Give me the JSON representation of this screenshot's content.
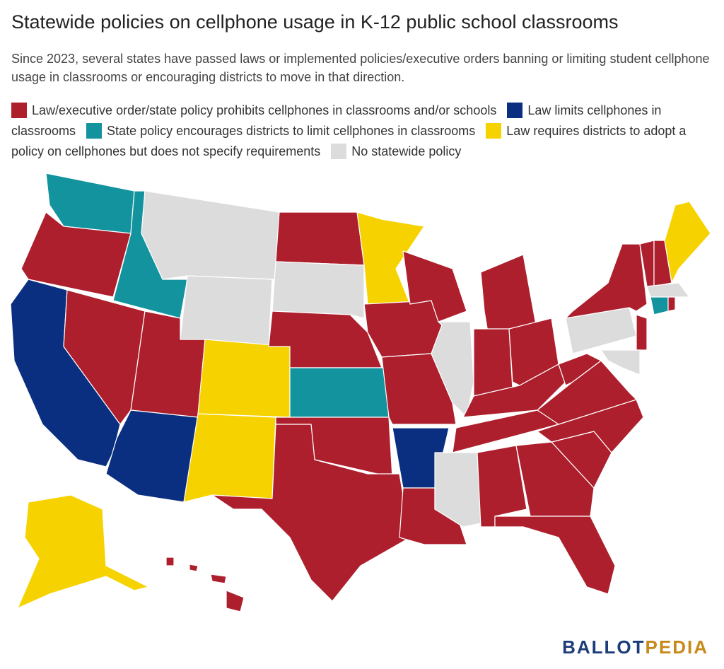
{
  "title": "Statewide policies on cellphone usage in K-12 public school classrooms",
  "subtitle": "Since 2023, several states have passed laws or implemented policies/executive orders banning or limiting student cellphone usage in classrooms or encouraging districts to move in that direction.",
  "legend": [
    {
      "label": "Law/executive order/state policy prohibits cellphones in classrooms and/or schools",
      "color": "#ad1f2d"
    },
    {
      "label": "Law limits cellphones in classrooms",
      "color": "#0b2f80"
    },
    {
      "label": "State policy encourages districts to limit cellphones in classrooms",
      "color": "#12939e"
    },
    {
      "label": "Law requires districts to adopt a policy on cellphones but does not specify requirements",
      "color": "#f6d200"
    },
    {
      "label": "No statewide policy",
      "color": "#dcdcdc"
    }
  ],
  "logo": {
    "first": "BALLOT",
    "second": "PEDIA",
    "first_color": "#1c3d7a",
    "second_color": "#c8891a"
  }
}
